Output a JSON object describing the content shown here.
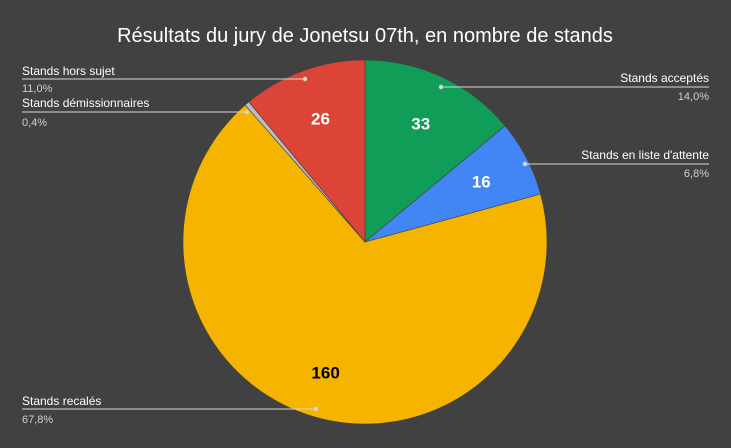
{
  "chart_data": {
    "type": "pie",
    "title": "Résultats du jury de Jonetsu 07th, en nombre de stands",
    "slices": [
      {
        "name": "Stands acceptés",
        "value": 33,
        "label": "33",
        "percent_label": "14,0%",
        "color": "#0f9d58",
        "label_color": "#ffffff"
      },
      {
        "name": "Stands en liste d'attente",
        "value": 16,
        "label": "16",
        "percent_label": "6,8%",
        "color": "#4285f4",
        "label_color": "#ffffff"
      },
      {
        "name": "Stands recalés",
        "value": 160,
        "label": "160",
        "percent_label": "67,8%",
        "color": "#f4b400",
        "label_color": "#000000"
      },
      {
        "name": "Stands démissionnaires",
        "value": 1,
        "label": "",
        "percent_label": "0,4%",
        "color": "#bdbdbd",
        "label_color": "#000000"
      },
      {
        "name": "Stands hors sujet",
        "value": 26,
        "label": "26",
        "percent_label": "11,0%",
        "color": "#db4437",
        "label_color": "#ffffff"
      }
    ],
    "start_angle": "top (12 o'clock), clockwise",
    "legend": "leader-line labels around pie"
  },
  "colors": {
    "background": "#414141",
    "text": "#ffffff",
    "muted_text": "#cfcfcf"
  }
}
